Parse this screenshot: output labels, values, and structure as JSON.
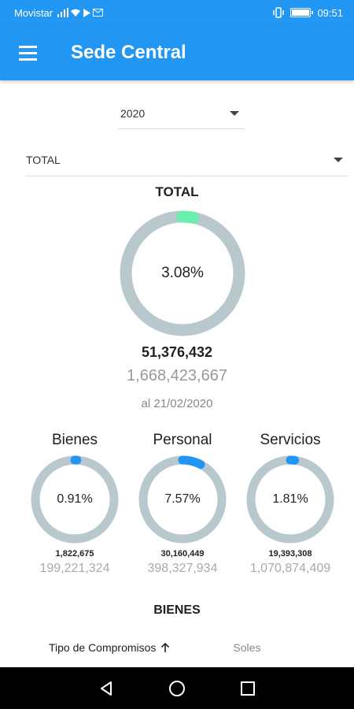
{
  "status_bar": {
    "carrier": "Movistar",
    "time": "09:51",
    "icons": [
      "signal-icon",
      "wifi-icon",
      "message-icon",
      "play-icon",
      "mail-icon"
    ]
  },
  "app_bar": {
    "title": "Sede Central",
    "menu_icon": "hamburger-menu-icon"
  },
  "filters": {
    "year": "2020",
    "category": "TOTAL"
  },
  "total": {
    "title": "TOTAL",
    "percent_label": "3.08%",
    "percent": 3.08,
    "executed": "51,376,432",
    "pim": "1,668,423,667",
    "date": "al 21/02/2020",
    "accent": "#69f0ae"
  },
  "cards": [
    {
      "title": "Bienes",
      "percent_label": "0.91%",
      "percent": 0.91,
      "executed": "1,822,675",
      "pim": "199,221,324"
    },
    {
      "title": "Personal",
      "percent_label": "7.57%",
      "percent": 7.57,
      "executed": "30,160,449",
      "pim": "398,327,934"
    },
    {
      "title": "Servicios",
      "percent_label": "1.81%",
      "percent": 1.81,
      "executed": "19,393,308",
      "pim": "1,070,874,409"
    }
  ],
  "section": {
    "title": "BIENES"
  },
  "table": {
    "col_tipo": "Tipo de Compromisos",
    "sort_icon": "arrow-up-icon",
    "col_soles": "Soles"
  },
  "colors": {
    "primary": "#2196f3",
    "track": "#b8c8cc",
    "card_accent": "#2196f3",
    "total_accent": "#69f0ae"
  }
}
